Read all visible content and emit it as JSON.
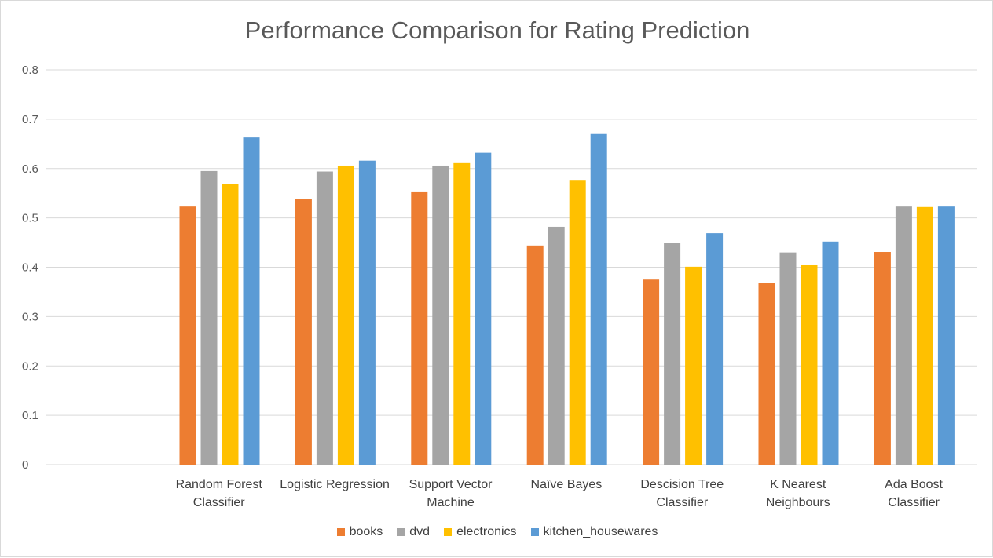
{
  "chart_data": {
    "type": "bar",
    "title": "Performance Comparison for Rating Prediction",
    "xlabel": "",
    "ylabel": "",
    "ylim": [
      0,
      0.8
    ],
    "yticks": [
      "0",
      "0.1",
      "0.2",
      "0.3",
      "0.4",
      "0.5",
      "0.6",
      "0.7",
      "0.8"
    ],
    "grid": true,
    "legend_position": "bottom",
    "categories": [
      [
        "Random Forest",
        "Classifier"
      ],
      [
        "Logistic Regression"
      ],
      [
        "Support Vector",
        "Machine"
      ],
      [
        "Naïve Bayes"
      ],
      [
        "Descision Tree",
        "Classifier"
      ],
      [
        "K Nearest",
        "Neighbours"
      ],
      [
        "Ada Boost",
        "Classifier"
      ]
    ],
    "series": [
      {
        "name": "books",
        "color": "#ed7d31",
        "values": [
          0.523,
          0.539,
          0.552,
          0.444,
          0.375,
          0.368,
          0.431
        ]
      },
      {
        "name": "dvd",
        "color": "#a5a5a5",
        "values": [
          0.595,
          0.594,
          0.606,
          0.482,
          0.45,
          0.43,
          0.523
        ]
      },
      {
        "name": "electronics",
        "color": "#ffc000",
        "values": [
          0.568,
          0.606,
          0.611,
          0.577,
          0.401,
          0.404,
          0.522
        ]
      },
      {
        "name": "kitchen_housewares",
        "color": "#5b9bd5",
        "values": [
          0.663,
          0.616,
          0.632,
          0.67,
          0.469,
          0.452,
          0.523
        ]
      }
    ]
  }
}
